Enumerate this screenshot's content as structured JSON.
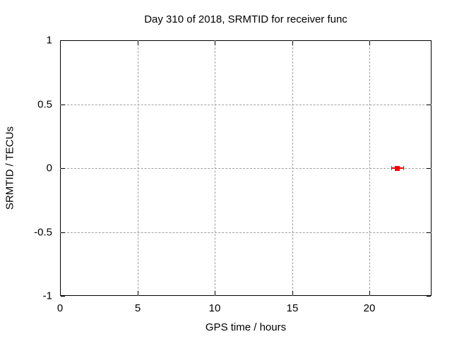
{
  "chart_data": {
    "type": "scatter",
    "title": "Day 310 of 2018, SRMTID for receiver func",
    "xlabel": "GPS time / hours",
    "ylabel": "SRMTID / TECUs",
    "xlim": [
      0,
      24
    ],
    "ylim": [
      -1,
      1
    ],
    "xticks": [
      0,
      5,
      10,
      15,
      20
    ],
    "xtick_labels": [
      "0",
      "5",
      "10",
      "15",
      "20"
    ],
    "yticks": [
      -1,
      -0.5,
      0,
      0.5,
      1
    ],
    "ytick_labels": [
      "-1",
      "-0.5",
      "0",
      "0.5",
      "1"
    ],
    "grid": true,
    "grid_style": "dashed-gray",
    "legend": false,
    "colors": {
      "marker": "#ff0000",
      "grid": "#a0a0a0",
      "border": "#000000",
      "background": "#ffffff"
    },
    "series": [
      {
        "name": "SRMTID",
        "style": "xerrorbars",
        "marker": "filled-square",
        "color": "#ff0000",
        "points": [
          {
            "x": 21.8,
            "y": 0,
            "xlow": 21.4,
            "xhigh": 22.2
          }
        ]
      }
    ]
  }
}
